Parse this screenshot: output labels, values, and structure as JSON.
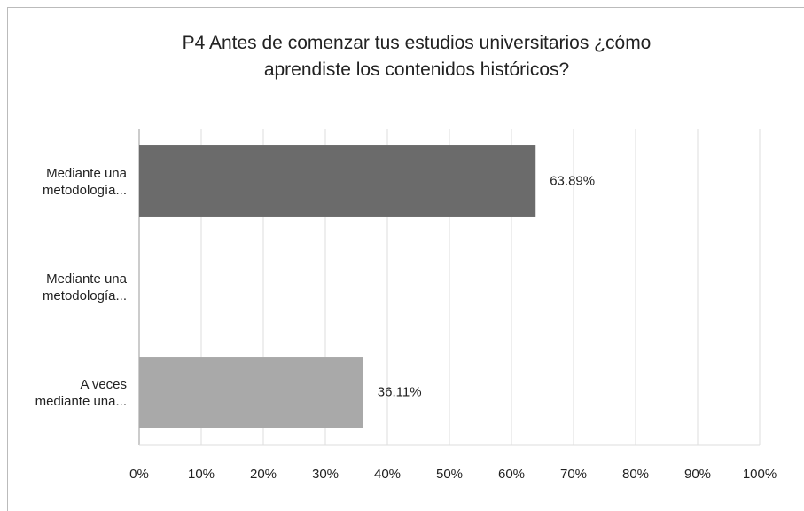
{
  "chart_data": {
    "type": "bar",
    "orientation": "horizontal",
    "title": "P4 Antes de comenzar tus estudios universitarios ¿cómo\naprendiste los contenidos históricos?",
    "categories": [
      "Mediante una\nmetodología...",
      "Mediante una\nmetodología...",
      "A veces\nmediante una..."
    ],
    "values": [
      63.89,
      0,
      36.11
    ],
    "value_labels": [
      "63.89%",
      null,
      "36.11%"
    ],
    "colors": [
      "#6b6b6b",
      "#8a8a8a",
      "#a9a9a9"
    ],
    "xlim": [
      0,
      100
    ],
    "xticks": [
      {
        "value": 0,
        "label": "0%"
      },
      {
        "value": 10,
        "label": "10%"
      },
      {
        "value": 20,
        "label": "20%"
      },
      {
        "value": 30,
        "label": "30%"
      },
      {
        "value": 40,
        "label": "40%"
      },
      {
        "value": 50,
        "label": "50%"
      },
      {
        "value": 60,
        "label": "60%"
      },
      {
        "value": 70,
        "label": "70%"
      },
      {
        "value": 80,
        "label": "80%"
      },
      {
        "value": 90,
        "label": "90%"
      },
      {
        "value": 100,
        "label": "100%"
      }
    ],
    "grid": true
  }
}
